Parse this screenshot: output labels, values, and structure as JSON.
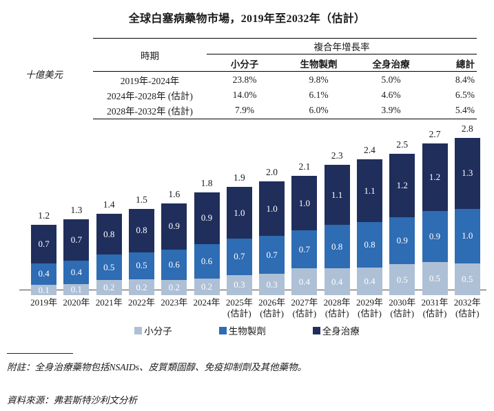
{
  "title": "全球白塞病藥物市場，2019年至2032年（估計）",
  "unit_label": "十億美元",
  "cagr_table": {
    "period_header": "時期",
    "group_header": "複合年增長率",
    "columns": [
      "小分子",
      "生物製劑",
      "全身治療",
      "總計"
    ],
    "rows": [
      {
        "period": "2019年-2024年",
        "values": [
          "23.8%",
          "9.8%",
          "5.0%",
          "8.4%"
        ]
      },
      {
        "period": "2024年-2028年 (估計)",
        "values": [
          "14.0%",
          "6.1%",
          "4.6%",
          "6.5%"
        ]
      },
      {
        "period": "2028年-2032年 (估計)",
        "values": [
          "7.9%",
          "6.0%",
          "3.9%",
          "5.4%"
        ]
      }
    ]
  },
  "chart_data": {
    "type": "bar",
    "stacked": true,
    "title": "全球白塞病藥物市場，2019年至2032年（估計）",
    "ylabel": "十億美元",
    "grid": false,
    "legend_position": "bottom",
    "categories": [
      "2019年",
      "2020年",
      "2021年",
      "2022年",
      "2023年",
      "2024年",
      "2025年",
      "2026年",
      "2027年",
      "2028年",
      "2029年",
      "2030年",
      "2031年",
      "2032年"
    ],
    "category_sublabels": [
      "",
      "",
      "",
      "",
      "",
      "",
      "(估計)",
      "(估計)",
      "(估計)",
      "(估計)",
      "(估計)",
      "(估計)",
      "(估計)",
      "(估計)"
    ],
    "series": [
      {
        "name": "小分子",
        "color": "#aec0d6",
        "values": [
          0.1,
          0.1,
          0.2,
          0.2,
          0.2,
          0.2,
          0.3,
          0.3,
          0.4,
          0.4,
          0.4,
          0.5,
          0.5,
          0.5
        ]
      },
      {
        "name": "生物製劑",
        "color": "#2e6cb4",
        "values": [
          0.4,
          0.4,
          0.5,
          0.5,
          0.6,
          0.6,
          0.7,
          0.7,
          0.7,
          0.8,
          0.8,
          0.9,
          0.9,
          1.0
        ]
      },
      {
        "name": "全身治療",
        "color": "#202e5c",
        "values": [
          0.7,
          0.7,
          0.8,
          0.8,
          0.9,
          0.9,
          1.0,
          1.0,
          1.0,
          1.1,
          1.1,
          1.2,
          1.2,
          1.3
        ]
      }
    ],
    "totals": [
      1.2,
      1.3,
      1.4,
      1.5,
      1.6,
      1.8,
      1.9,
      2.0,
      2.1,
      2.3,
      2.4,
      2.5,
      2.7,
      2.8
    ]
  },
  "footnotes": {
    "note": "附註：全身治療藥物包括NSAIDs、皮質類固醇、免疫抑制劑及其他藥物。",
    "source": "資料來源：弗若斯特沙利文分析"
  }
}
